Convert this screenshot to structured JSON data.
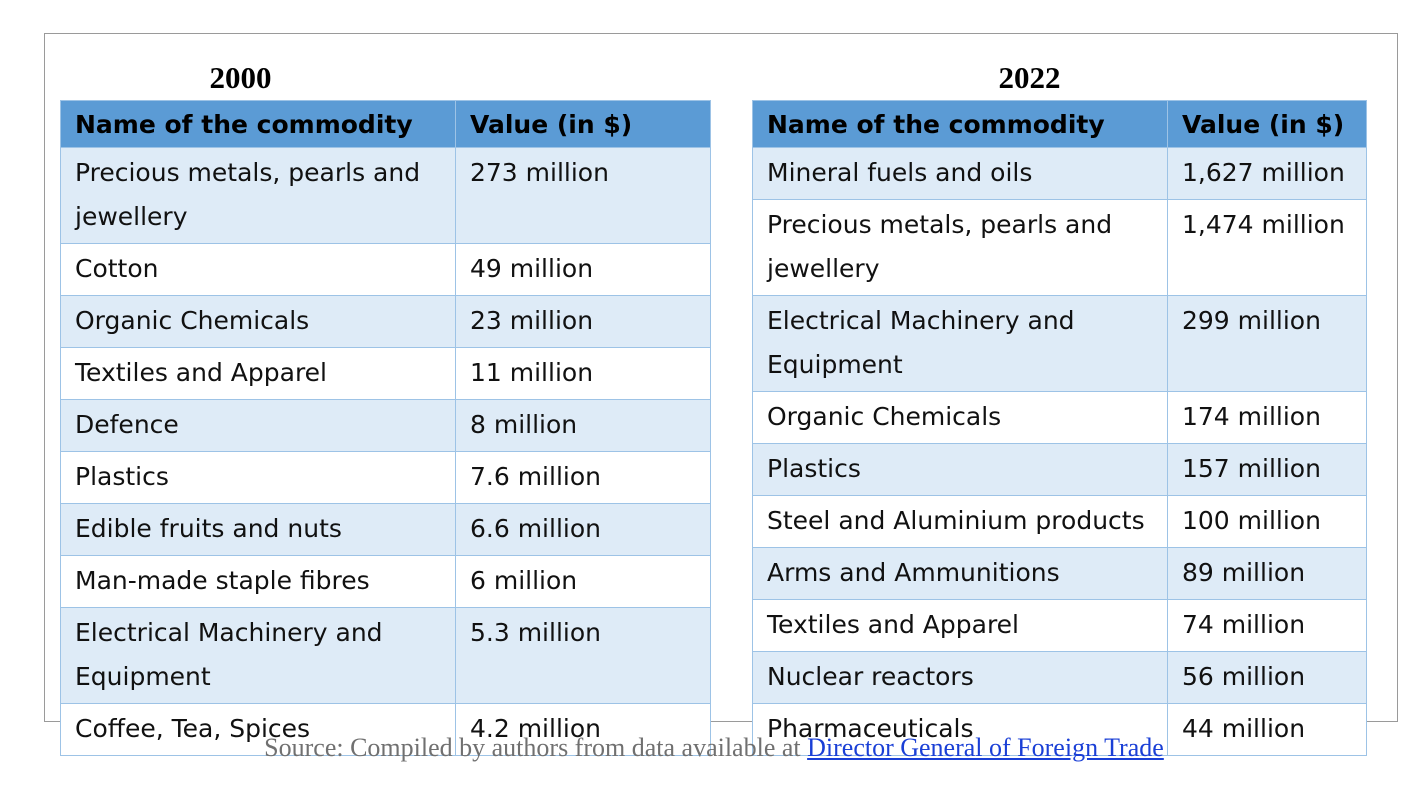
{
  "tables": [
    {
      "year": "2000",
      "headers": [
        "Name of the commodity",
        "Value (in $)"
      ],
      "rows": [
        [
          "Precious metals, pearls and jewellery",
          "273 million"
        ],
        [
          "Cotton",
          "49 million"
        ],
        [
          "Organic Chemicals",
          "23 million"
        ],
        [
          "Textiles and Apparel",
          "11 million"
        ],
        [
          "Defence",
          "8 million"
        ],
        [
          "Plastics",
          "7.6 million"
        ],
        [
          "Edible fruits and nuts",
          "6.6 million"
        ],
        [
          "Man-made staple fibres",
          "6 million"
        ],
        [
          "Electrical Machinery and Equipment",
          "5.3 million"
        ],
        [
          "Coffee, Tea, Spices",
          "4.2 million"
        ]
      ]
    },
    {
      "year": "2022",
      "headers": [
        "Name of the commodity",
        "Value (in $)"
      ],
      "rows": [
        [
          "Mineral fuels and oils",
          "1,627 million"
        ],
        [
          "Precious metals, pearls and jewellery",
          "1,474 million"
        ],
        [
          "Electrical Machinery and Equipment",
          "299 million"
        ],
        [
          "Organic Chemicals",
          "174 million"
        ],
        [
          "Plastics",
          "157 million"
        ],
        [
          "Steel and Aluminium products",
          "100 million"
        ],
        [
          "Arms and Ammunitions",
          "89 million"
        ],
        [
          "Textiles and Apparel",
          "74 million"
        ],
        [
          "Nuclear reactors",
          "56 million"
        ],
        [
          "Pharmaceuticals",
          "44 million"
        ]
      ]
    }
  ],
  "source": {
    "prefix": "Source: Compiled by authors from data available at ",
    "link_text": "Director General of Foreign Trade"
  },
  "colors": {
    "header_bg": "#5b9bd5",
    "band_bg": "#deebf7",
    "border": "#9dc3e6",
    "link": "#1a3fd6"
  }
}
